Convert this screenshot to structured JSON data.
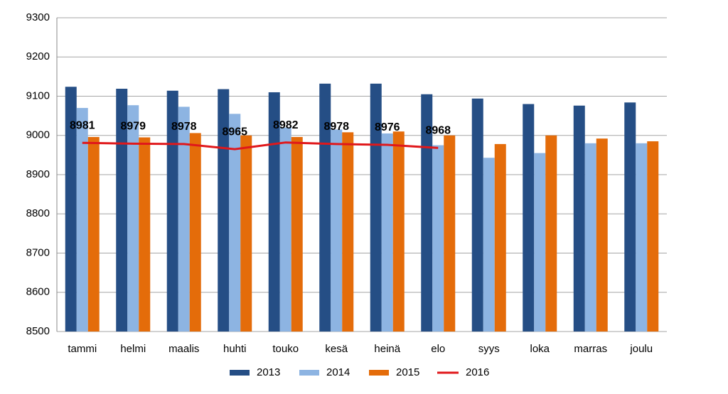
{
  "chart_data": {
    "type": "bar",
    "categories": [
      "tammi",
      "helmi",
      "maalis",
      "huhti",
      "touko",
      "kesä",
      "heinä",
      "elo",
      "syys",
      "loka",
      "marras",
      "joulu"
    ],
    "series": [
      {
        "name": "2013",
        "type": "bar",
        "color": "#254e85",
        "values": [
          9124,
          9119,
          9114,
          9118,
          9110,
          9132,
          9132,
          9105,
          9094,
          9080,
          9076,
          9084
        ]
      },
      {
        "name": "2014",
        "type": "bar",
        "color": "#8db4e2",
        "values": [
          9070,
          9077,
          9073,
          9055,
          9020,
          9015,
          9005,
          8975,
          8943,
          8955,
          8980,
          8980
        ]
      },
      {
        "name": "2015",
        "type": "bar",
        "color": "#e46c0a",
        "values": [
          8996,
          8995,
          9006,
          9000,
          8996,
          9008,
          9010,
          9000,
          8978,
          9000,
          8992,
          8985
        ]
      },
      {
        "name": "2016",
        "type": "line",
        "color": "#e0181b",
        "values": [
          8981,
          8979,
          8978,
          8965,
          8982,
          8978,
          8976,
          8968,
          null,
          null,
          null,
          null
        ]
      }
    ],
    "ylim": [
      8500,
      9300
    ],
    "yticks": [
      8500,
      8600,
      8700,
      8800,
      8900,
      9000,
      9100,
      9200,
      9300
    ],
    "grid": true,
    "legend": "bottom"
  }
}
